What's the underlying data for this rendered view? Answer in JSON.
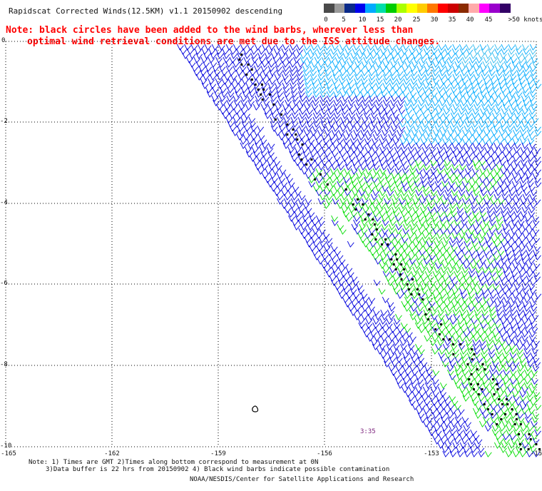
{
  "header": {
    "title": "Rapidscat Corrected Winds(12.5KM) v1.1 20150902 descending",
    "note_line1": "Note: black circles have been added to the wind barbs, wherever less than",
    "note_line2": "optimal wind retrieval conditions are met due to the ISS attitude changes."
  },
  "colorbar": {
    "labels": [
      "0",
      "5",
      "10",
      "15",
      "20",
      "25",
      "30",
      "35",
      "40",
      "45",
      ">50 knots"
    ],
    "colors": [
      "#4a4a4a",
      "#9a9a9a",
      "#0a2a8a",
      "#0000ee",
      "#00aaff",
      "#00ddaa",
      "#00cc00",
      "#aaff00",
      "#ffff00",
      "#ffcc00",
      "#ff7700",
      "#ff0000",
      "#cc0000",
      "#8a2a00",
      "#ffaaaa",
      "#ff00ff",
      "#9900cc",
      "#330066"
    ]
  },
  "map": {
    "y_axis_labels": [
      "0",
      "-2",
      "-4",
      "-6",
      "-8",
      "-10"
    ],
    "x_axis_labels": [
      "-165",
      "-162",
      "-159",
      "-156",
      "-153",
      "-15"
    ],
    "timestamp": "3:35",
    "barb_colors": {
      "blue": "#0000dd",
      "light_blue": "#00aaff",
      "green": "#00dd00",
      "black": "#000000"
    }
  },
  "footer": {
    "line1": "Note: 1) Times are GMT 2)Times along bottom correspond to measurement at 0N",
    "line2": "3)Data buffer is 22 hrs from 20150902 4) Black wind barbs indicate possible contamination",
    "line3": "NOAA/NESDIS/Center for Satellite Applications and Research"
  }
}
